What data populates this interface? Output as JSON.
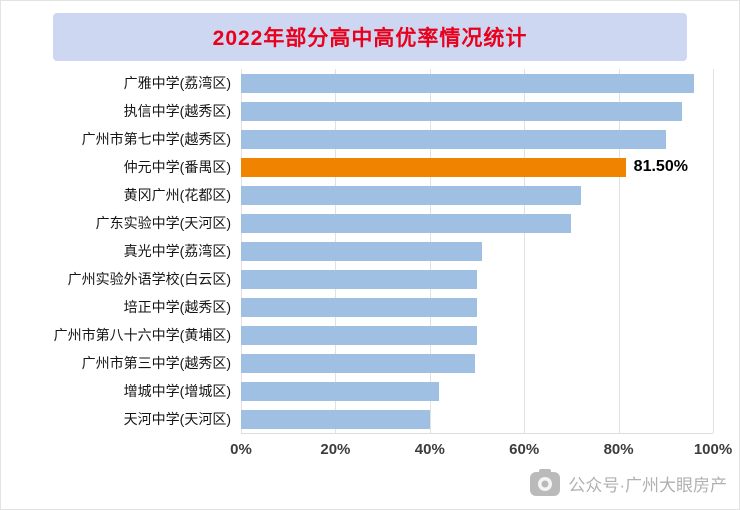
{
  "chart_data": {
    "type": "bar",
    "orientation": "horizontal",
    "title": "2022年部分高中高优率情况统计",
    "categories": [
      "广雅中学(荔湾区)",
      "执信中学(越秀区)",
      "广州市第七中学(越秀区)",
      "仲元中学(番禺区)",
      "黄冈广州(花都区)",
      "广东实验中学(天河区)",
      "真光中学(荔湾区)",
      "广州实验外语学校(白云区)",
      "培正中学(越秀区)",
      "广州市第八十六中学(黄埔区)",
      "广州市第三中学(越秀区)",
      "增城中学(增城区)",
      "天河中学(天河区)"
    ],
    "values": [
      96,
      93.5,
      90,
      81.5,
      72,
      70,
      51,
      50,
      50,
      50,
      49.5,
      42,
      40
    ],
    "xlim": [
      0,
      100
    ],
    "x_ticks": [
      "0%",
      "20%",
      "40%",
      "60%",
      "80%",
      "100%"
    ],
    "grid": true,
    "legend": false,
    "highlight_index": 3,
    "highlight_label": "81.50%",
    "colors": {
      "bar": "#9fc0e2",
      "highlight": "#f08300",
      "title_text": "#e8001c",
      "title_bg": "#cdd7f1"
    }
  },
  "watermark": {
    "text": "公众号·广州大眼房产",
    "icon": "camera-icon"
  }
}
